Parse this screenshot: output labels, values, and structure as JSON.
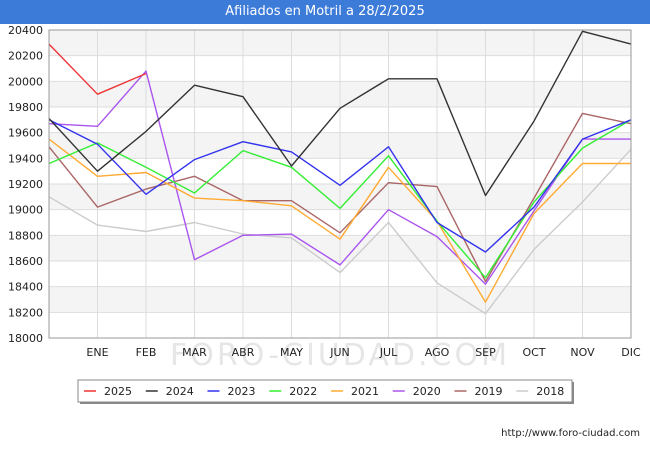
{
  "title": "Afiliados en Motril a 28/2/2025",
  "footer_url": "http://www.foro-ciudad.com",
  "watermark": "FORO-CIUDAD.COM",
  "chart_data": {
    "type": "line",
    "title": "Afiliados en Motril a 28/2/2025",
    "categories": [
      "",
      "ENE",
      "FEB",
      "MAR",
      "ABR",
      "MAY",
      "JUN",
      "JUL",
      "AGO",
      "SEP",
      "OCT",
      "NOV",
      "DIC"
    ],
    "ylim": [
      18000,
      20400
    ],
    "yticks": [
      18000,
      18200,
      18400,
      18600,
      18800,
      19000,
      19200,
      19400,
      19600,
      19800,
      20000,
      20200,
      20400
    ],
    "grid": true,
    "legend_position": "bottom",
    "series": [
      {
        "name": "2025",
        "color": "#ee3333",
        "values": [
          20290,
          19900,
          20060,
          null,
          null,
          null,
          null,
          null,
          null,
          null,
          null,
          null,
          null
        ]
      },
      {
        "name": "2024",
        "color": "#333333",
        "values": [
          19710,
          19300,
          19610,
          19970,
          19880,
          19340,
          19790,
          20020,
          20020,
          19110,
          19690,
          20390,
          20290
        ]
      },
      {
        "name": "2023",
        "color": "#3333ee",
        "values": [
          19700,
          19510,
          19120,
          19390,
          19530,
          19450,
          19190,
          19490,
          18900,
          18670,
          19020,
          19550,
          19700
        ]
      },
      {
        "name": "2022",
        "color": "#33ee33",
        "values": [
          19360,
          19520,
          19330,
          19130,
          19460,
          19330,
          19010,
          19420,
          18910,
          18470,
          19060,
          19480,
          19700
        ]
      },
      {
        "name": "2021",
        "color": "#ffaa33",
        "values": [
          19550,
          19260,
          19290,
          19090,
          19070,
          19030,
          18770,
          19330,
          18910,
          18280,
          18970,
          19360,
          19360
        ]
      },
      {
        "name": "2020",
        "color": "#aa55ee",
        "values": [
          19670,
          19650,
          20080,
          18610,
          18800,
          18810,
          18570,
          19000,
          18790,
          18420,
          18990,
          19550,
          19550
        ]
      },
      {
        "name": "2019",
        "color": "#aa6666",
        "values": [
          19490,
          19020,
          19160,
          19260,
          19070,
          19070,
          18820,
          19210,
          19180,
          18440,
          19090,
          19750,
          19670
        ]
      },
      {
        "name": "2018",
        "color": "#cccccc",
        "values": [
          19100,
          18880,
          18830,
          18900,
          18810,
          18780,
          18510,
          18900,
          18430,
          18190,
          18690,
          19060,
          19470
        ]
      }
    ]
  }
}
